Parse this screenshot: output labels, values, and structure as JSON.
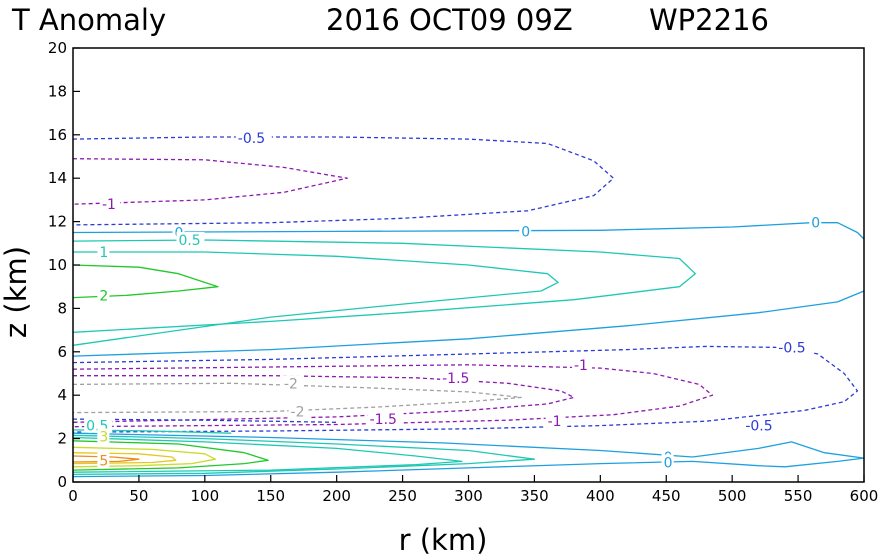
{
  "header": {
    "left": "T Anomaly",
    "date": "2016 OCT09 09Z",
    "storm": "WP2216"
  },
  "chart_data": {
    "type": "contour",
    "title": "T Anomaly",
    "xlabel": "r (km)",
    "ylabel": "z (km)",
    "xlim": [
      0,
      600
    ],
    "ylim": [
      0,
      20
    ],
    "xticks": [
      "0",
      "50",
      "100",
      "150",
      "200",
      "250",
      "300",
      "350",
      "400",
      "450",
      "500",
      "550",
      "600"
    ],
    "yticks": [
      "0",
      "2",
      "4",
      "6",
      "8",
      "10",
      "12",
      "14",
      "16",
      "18",
      "20"
    ],
    "grid": false,
    "contours": [
      {
        "level": "-0.5",
        "color": "#2b3bd6",
        "dashed": true,
        "points": [
          [
            0,
            15.8
          ],
          [
            100,
            15.9
          ],
          [
            200,
            15.9
          ],
          [
            300,
            15.8
          ],
          [
            360,
            15.6
          ],
          [
            395,
            14.8
          ],
          [
            410,
            14.0
          ],
          [
            395,
            13.2
          ],
          [
            345,
            12.5
          ],
          [
            250,
            12.15
          ],
          [
            150,
            11.95
          ],
          [
            0,
            11.85
          ]
        ],
        "labels": [
          {
            "text": "-0.5",
            "x": 125,
            "y": 15.85
          }
        ]
      },
      {
        "level": "-1",
        "color": "#8e1ab2",
        "dashed": true,
        "points": [
          [
            0,
            14.9
          ],
          [
            100,
            14.85
          ],
          [
            160,
            14.5
          ],
          [
            208,
            14.0
          ],
          [
            160,
            13.35
          ],
          [
            100,
            13.0
          ],
          [
            0,
            12.8
          ]
        ],
        "labels": [
          {
            "text": "-1",
            "x": 22,
            "y": 12.8
          }
        ]
      },
      {
        "level": "0",
        "color": "#1ea0e0",
        "dashed": false,
        "points": [
          [
            0,
            11.5
          ],
          [
            200,
            11.55
          ],
          [
            400,
            11.6
          ],
          [
            500,
            11.75
          ],
          [
            560,
            11.95
          ],
          [
            580,
            11.95
          ],
          [
            595,
            11.5
          ],
          [
            600,
            11.2
          ]
        ],
        "labels": [
          {
            "text": "0",
            "x": 77,
            "y": 11.5
          },
          {
            "text": "0",
            "x": 340,
            "y": 11.55
          },
          {
            "text": "0",
            "x": 560,
            "y": 11.95
          }
        ]
      },
      {
        "level": "0.5",
        "color": "#1ec8b4",
        "dashed": false,
        "points": [
          [
            0,
            11.1
          ],
          [
            100,
            11.15
          ],
          [
            250,
            11.0
          ],
          [
            400,
            10.6
          ],
          [
            460,
            10.3
          ],
          [
            472,
            9.6
          ],
          [
            460,
            9.0
          ],
          [
            380,
            8.4
          ],
          [
            250,
            7.8
          ],
          [
            150,
            7.4
          ],
          [
            0,
            6.9
          ]
        ],
        "labels": [
          {
            "text": "0.5",
            "x": 80,
            "y": 11.15
          }
        ]
      },
      {
        "level": "1",
        "color": "#1ec8b4",
        "dashed": false,
        "points": [
          [
            0,
            10.6
          ],
          [
            100,
            10.6
          ],
          [
            200,
            10.4
          ],
          [
            300,
            10.0
          ],
          [
            360,
            9.6
          ],
          [
            368,
            9.2
          ],
          [
            355,
            8.8
          ],
          [
            250,
            8.2
          ],
          [
            150,
            7.6
          ],
          [
            0,
            6.3
          ]
        ],
        "labels": [
          {
            "text": "1",
            "x": 20,
            "y": 10.6
          }
        ]
      },
      {
        "level": "2",
        "color": "#22c82a",
        "dashed": false,
        "points": [
          [
            0,
            10.0
          ],
          [
            50,
            9.9
          ],
          [
            80,
            9.6
          ],
          [
            110,
            9.0
          ],
          [
            80,
            8.8
          ],
          [
            40,
            8.6
          ],
          [
            0,
            8.5
          ]
        ],
        "labels": [
          {
            "text": "2",
            "x": 20,
            "y": 8.6
          }
        ]
      },
      {
        "level": "0b",
        "color": "#1ea0e0",
        "dashed": false,
        "points": [
          [
            0,
            5.8
          ],
          [
            150,
            6.1
          ],
          [
            300,
            6.6
          ],
          [
            420,
            7.2
          ],
          [
            520,
            7.8
          ],
          [
            580,
            8.3
          ],
          [
            600,
            8.8
          ]
        ],
        "labels": []
      },
      {
        "level": "-0.5b",
        "color": "#2b3bd6",
        "dashed": true,
        "points": [
          [
            0,
            5.5
          ],
          [
            150,
            5.65
          ],
          [
            300,
            5.9
          ],
          [
            420,
            6.1
          ],
          [
            480,
            6.25
          ],
          [
            540,
            6.2
          ],
          [
            565,
            5.9
          ],
          [
            585,
            5.0
          ],
          [
            595,
            4.2
          ],
          [
            585,
            3.7
          ],
          [
            555,
            3.3
          ],
          [
            480,
            2.8
          ],
          [
            400,
            2.6
          ],
          [
            300,
            2.45
          ],
          [
            150,
            2.35
          ],
          [
            0,
            2.3
          ]
        ],
        "labels": [
          {
            "text": "-0.5",
            "x": 535,
            "y": 6.2
          },
          {
            "text": "-0.5",
            "x": 510,
            "y": 2.6
          }
        ]
      },
      {
        "level": "-1b",
        "color": "#8e1ab2",
        "dashed": true,
        "points": [
          [
            0,
            5.2
          ],
          [
            150,
            5.3
          ],
          [
            300,
            5.4
          ],
          [
            400,
            5.25
          ],
          [
            440,
            5.0
          ],
          [
            475,
            4.5
          ],
          [
            485,
            4.0
          ],
          [
            460,
            3.5
          ],
          [
            410,
            3.1
          ],
          [
            330,
            2.85
          ],
          [
            200,
            2.65
          ],
          [
            0,
            2.55
          ]
        ],
        "labels": [
          {
            "text": "-1",
            "x": 380,
            "y": 5.4
          },
          {
            "text": "-1",
            "x": 360,
            "y": 2.8
          }
        ]
      },
      {
        "level": "-1.5",
        "color": "#8e1ab2",
        "dashed": true,
        "points": [
          [
            0,
            4.9
          ],
          [
            150,
            4.9
          ],
          [
            260,
            4.8
          ],
          [
            330,
            4.55
          ],
          [
            370,
            4.2
          ],
          [
            380,
            3.9
          ],
          [
            360,
            3.6
          ],
          [
            300,
            3.3
          ],
          [
            200,
            3.0
          ],
          [
            0,
            2.75
          ]
        ],
        "labels": [
          {
            "text": "-1.5",
            "x": 280,
            "y": 4.8
          },
          {
            "text": "-1.5",
            "x": 225,
            "y": 2.9
          }
        ]
      },
      {
        "level": "-2",
        "color": "#a0a0a0",
        "dashed": true,
        "points": [
          [
            0,
            4.5
          ],
          [
            120,
            4.55
          ],
          [
            220,
            4.35
          ],
          [
            300,
            4.15
          ],
          [
            340,
            3.9
          ],
          [
            300,
            3.7
          ],
          [
            230,
            3.45
          ],
          [
            150,
            3.25
          ],
          [
            0,
            3.2
          ]
        ],
        "labels": [
          {
            "text": "-2",
            "x": 160,
            "y": 4.55
          },
          {
            "text": "-2",
            "x": 165,
            "y": 3.25
          }
        ]
      },
      {
        "level": "0c",
        "color": "#1ea0e0",
        "dashed": false,
        "points": [
          [
            0,
            2.25
          ],
          [
            150,
            2.05
          ],
          [
            280,
            1.8
          ],
          [
            400,
            1.45
          ],
          [
            470,
            1.15
          ],
          [
            520,
            1.55
          ],
          [
            545,
            1.85
          ],
          [
            570,
            1.35
          ],
          [
            600,
            1.1
          ],
          [
            580,
            0.95
          ],
          [
            540,
            0.7
          ],
          [
            520,
            0.75
          ],
          [
            470,
            0.95
          ],
          [
            400,
            0.85
          ],
          [
            300,
            0.65
          ],
          [
            200,
            0.45
          ],
          [
            100,
            0.3
          ],
          [
            0,
            0.25
          ]
        ],
        "labels": [
          {
            "text": "0",
            "x": 448,
            "y": 1.15
          },
          {
            "text": "0",
            "x": 448,
            "y": 0.9
          }
        ]
      },
      {
        "level": "0.5c",
        "color": "#1ec8b4",
        "dashed": false,
        "points": [
          [
            0,
            2.15
          ],
          [
            100,
            2.0
          ],
          [
            200,
            1.75
          ],
          [
            300,
            1.45
          ],
          [
            350,
            1.05
          ],
          [
            300,
            0.85
          ],
          [
            200,
            0.6
          ],
          [
            100,
            0.4
          ],
          [
            0,
            0.35
          ]
        ],
        "labels": [
          {
            "text": "0.5",
            "x": 10,
            "y": 2.6
          }
        ]
      },
      {
        "level": "1c",
        "color": "#1ec8b4",
        "dashed": false,
        "points": [
          [
            0,
            2.05
          ],
          [
            100,
            1.85
          ],
          [
            200,
            1.55
          ],
          [
            260,
            1.2
          ],
          [
            295,
            0.95
          ],
          [
            260,
            0.8
          ],
          [
            150,
            0.55
          ],
          [
            0,
            0.45
          ]
        ],
        "labels": []
      },
      {
        "level": "2c",
        "color": "#22c82a",
        "dashed": false,
        "points": [
          [
            0,
            1.9
          ],
          [
            80,
            1.75
          ],
          [
            130,
            1.35
          ],
          [
            148,
            1.0
          ],
          [
            130,
            0.85
          ],
          [
            80,
            0.65
          ],
          [
            0,
            0.55
          ]
        ],
        "labels": []
      },
      {
        "level": "3",
        "color": "#c8dc28",
        "dashed": false,
        "points": [
          [
            0,
            1.6
          ],
          [
            60,
            1.5
          ],
          [
            100,
            1.3
          ],
          [
            108,
            1.05
          ],
          [
            90,
            0.85
          ],
          [
            50,
            0.75
          ],
          [
            0,
            0.7
          ]
        ],
        "labels": [
          {
            "text": "3",
            "x": 20,
            "y": 2.1
          }
        ]
      },
      {
        "level": "4",
        "color": "#e6c81e",
        "dashed": false,
        "points": [
          [
            0,
            1.35
          ],
          [
            50,
            1.3
          ],
          [
            75,
            1.15
          ],
          [
            78,
            1.0
          ],
          [
            60,
            0.9
          ],
          [
            0,
            0.85
          ]
        ],
        "labels": []
      },
      {
        "level": "5",
        "color": "#f08c1e",
        "dashed": false,
        "points": [
          [
            0,
            1.2
          ],
          [
            30,
            1.15
          ],
          [
            50,
            1.05
          ],
          [
            35,
            0.95
          ],
          [
            0,
            0.92
          ]
        ],
        "labels": [
          {
            "text": "5",
            "x": 20,
            "y": 1.0
          }
        ]
      },
      {
        "level": "-0.5c",
        "color": "#2b3bd6",
        "dashed": true,
        "points": [
          [
            0,
            2.9
          ],
          [
            100,
            2.85
          ],
          [
            200,
            2.75
          ]
        ],
        "labels": []
      },
      {
        "level": "0.5d",
        "color": "#1ec8b4",
        "dashed": false,
        "points": [
          [
            0,
            2.4
          ],
          [
            60,
            2.35
          ],
          [
            120,
            2.25
          ]
        ],
        "labels": []
      }
    ]
  }
}
